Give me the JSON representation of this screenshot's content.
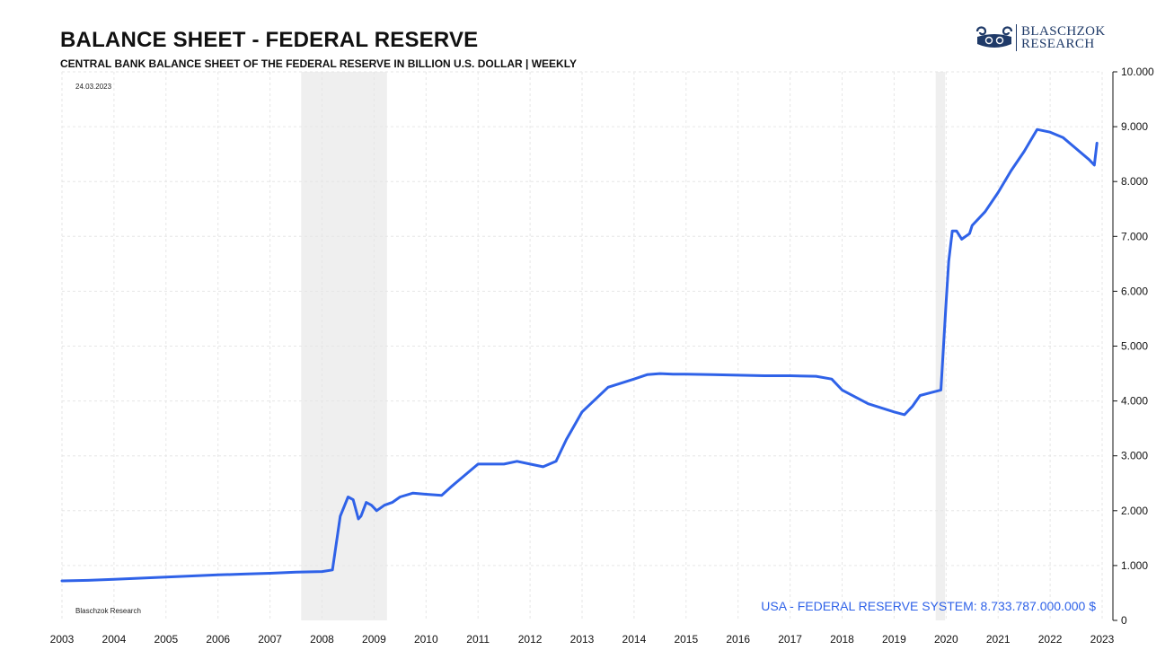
{
  "header": {
    "title": "BALANCE SHEET - FEDERAL RESERVE",
    "subtitle": "CENTRAL BANK BALANCE SHEET OF THE FEDERAL RESERVE IN BILLION U.S. DOLLAR | WEEKLY"
  },
  "logo": {
    "line1": "BLASCHZOK",
    "line2": "RESEARCH"
  },
  "date_label": "24.03.2023",
  "watermark": "Blaschzok Research",
  "colors": {
    "line": "#2f62e8",
    "recession": "#efefef",
    "grid": "#e6e6e6",
    "logo": "#1f3a68"
  },
  "chart_data": {
    "type": "line",
    "title": "BALANCE SHEET - FEDERAL RESERVE",
    "subtitle": "CENTRAL BANK BALANCE SHEET OF THE FEDERAL RESERVE IN BILLION U.S. DOLLAR | WEEKLY",
    "xlabel": "",
    "ylabel": "",
    "xlim": [
      2003.0,
      2023.0
    ],
    "ylim": [
      0,
      10000
    ],
    "y_axis_side": "right",
    "grid": true,
    "x_ticks": [
      2003,
      2004,
      2005,
      2006,
      2007,
      2008,
      2009,
      2010,
      2011,
      2012,
      2013,
      2014,
      2015,
      2016,
      2017,
      2018,
      2019,
      2020,
      2021,
      2022,
      2023
    ],
    "y_ticks": [
      0,
      1000,
      2000,
      3000,
      4000,
      5000,
      6000,
      7000,
      8000,
      9000,
      10000
    ],
    "y_tick_labels": [
      "0",
      "1.000",
      "2.000",
      "3.000",
      "4.000",
      "5.000",
      "6.000",
      "7.000",
      "8.000",
      "9.000",
      "10.000"
    ],
    "shaded_periods": [
      [
        2007.6,
        2009.25
      ],
      [
        2019.8,
        2019.98
      ]
    ],
    "annotation": "USA - FEDERAL RESERVE SYSTEM: 8.733.787.000.000 $",
    "series": [
      {
        "name": "USA - FEDERAL RESERVE SYSTEM",
        "x": [
          2003.0,
          2003.5,
          2004.0,
          2004.5,
          2005.0,
          2005.5,
          2006.0,
          2006.5,
          2007.0,
          2007.5,
          2008.0,
          2008.2,
          2008.35,
          2008.5,
          2008.6,
          2008.7,
          2008.75,
          2008.85,
          2008.95,
          2009.0,
          2009.05,
          2009.2,
          2009.35,
          2009.5,
          2009.75,
          2010.0,
          2010.3,
          2010.5,
          2010.75,
          2011.0,
          2011.2,
          2011.5,
          2011.75,
          2012.0,
          2012.25,
          2012.5,
          2012.7,
          2013.0,
          2013.5,
          2014.0,
          2014.25,
          2014.5,
          2014.75,
          2015.0,
          2015.5,
          2016.0,
          2016.5,
          2017.0,
          2017.5,
          2017.8,
          2018.0,
          2018.5,
          2019.0,
          2019.2,
          2019.35,
          2019.5,
          2019.7,
          2019.9,
          2020.0,
          2020.05,
          2020.12,
          2020.2,
          2020.3,
          2020.45,
          2020.5,
          2020.75,
          2021.0,
          2021.25,
          2021.5,
          2021.75,
          2022.0,
          2022.25,
          2022.5,
          2022.75,
          2022.85,
          2022.9
        ],
        "values": [
          720,
          730,
          750,
          770,
          790,
          810,
          830,
          845,
          860,
          880,
          890,
          920,
          1900,
          2250,
          2200,
          1850,
          1900,
          2150,
          2100,
          2050,
          2000,
          2100,
          2150,
          2250,
          2320,
          2300,
          2280,
          2450,
          2650,
          2850,
          2850,
          2850,
          2900,
          2850,
          2800,
          2900,
          3300,
          3800,
          4250,
          4400,
          4480,
          4500,
          4490,
          4490,
          4480,
          4470,
          4460,
          4460,
          4450,
          4400,
          4200,
          3950,
          3800,
          3750,
          3900,
          4100,
          4150,
          4200,
          5800,
          6550,
          7100,
          7100,
          6950,
          7050,
          7200,
          7450,
          7800,
          8200,
          8550,
          8950,
          8900,
          8800,
          8600,
          8400,
          8300,
          8700
        ]
      }
    ]
  }
}
